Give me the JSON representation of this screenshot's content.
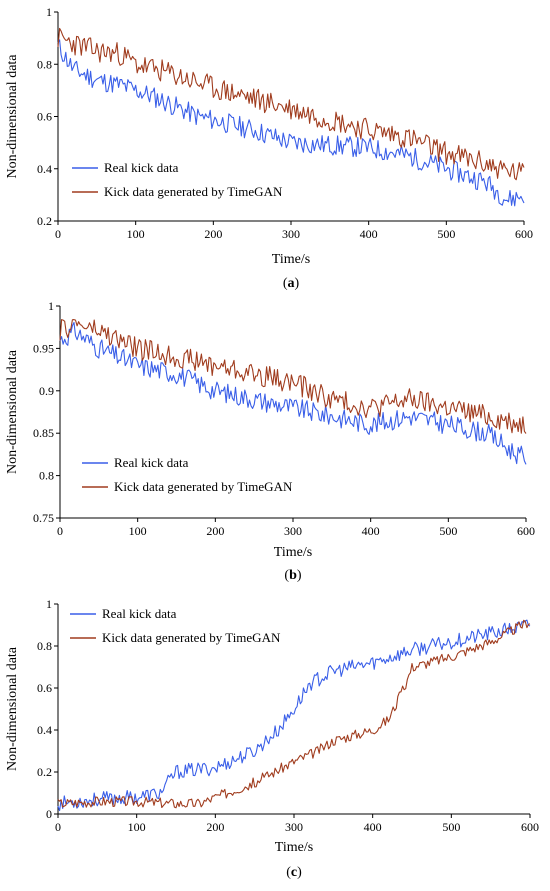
{
  "chart_data": [
    {
      "type": "line",
      "panel_label": "(a)",
      "xlabel": "Time/s",
      "ylabel": "Non-dimensional data",
      "xlim": [
        0,
        600
      ],
      "ylim": [
        0.2,
        1
      ],
      "xticks": [
        0,
        100,
        200,
        300,
        400,
        500,
        600
      ],
      "yticks": [
        0.2,
        0.4,
        0.6,
        0.8,
        1
      ],
      "ytick_labels": [
        "0.2",
        "0.4",
        "0.6",
        "0.8",
        "1"
      ],
      "legend": "left",
      "series": [
        {
          "name": "Real kick data",
          "color": "#3a5fe8",
          "noise": 0.04,
          "seed": 11,
          "x": [
            0,
            20,
            50,
            80,
            100,
            120,
            150,
            180,
            210,
            250,
            280,
            300,
            350,
            400,
            450,
            500,
            550,
            580,
            600
          ],
          "y": [
            0.87,
            0.78,
            0.74,
            0.72,
            0.7,
            0.68,
            0.64,
            0.6,
            0.58,
            0.55,
            0.52,
            0.5,
            0.49,
            0.48,
            0.45,
            0.4,
            0.35,
            0.28,
            0.3
          ]
        },
        {
          "name": "Kick data generated by TimeGAN",
          "color": "#a03c1e",
          "noise": 0.045,
          "seed": 23,
          "x": [
            0,
            20,
            50,
            80,
            100,
            150,
            200,
            250,
            300,
            350,
            400,
            450,
            500,
            550,
            580,
            600
          ],
          "y": [
            0.9,
            0.88,
            0.85,
            0.84,
            0.8,
            0.76,
            0.71,
            0.67,
            0.63,
            0.59,
            0.55,
            0.52,
            0.46,
            0.42,
            0.39,
            0.38
          ]
        }
      ]
    },
    {
      "type": "line",
      "panel_label": "(b)",
      "xlabel": "Time/s",
      "ylabel": "Non-dimensional data",
      "xlim": [
        0,
        600
      ],
      "ylim": [
        0.75,
        1
      ],
      "xticks": [
        0,
        100,
        200,
        300,
        400,
        500,
        600
      ],
      "yticks": [
        0.75,
        0.8,
        0.85,
        0.9,
        0.95,
        1
      ],
      "ytick_labels": [
        "0.75",
        "0.8",
        "0.85",
        "0.9",
        "0.95",
        "1"
      ],
      "legend": "bottom-left",
      "series": [
        {
          "name": "Real kick data",
          "color": "#3a5fe8",
          "noise": 0.012,
          "seed": 31,
          "x": [
            0,
            20,
            50,
            100,
            150,
            200,
            250,
            300,
            350,
            400,
            450,
            500,
            550,
            580,
            600
          ],
          "y": [
            0.96,
            0.97,
            0.95,
            0.93,
            0.92,
            0.9,
            0.89,
            0.88,
            0.87,
            0.86,
            0.87,
            0.86,
            0.85,
            0.83,
            0.82
          ]
        },
        {
          "name": "Kick data generated by TimeGAN",
          "color": "#a03c1e",
          "noise": 0.013,
          "seed": 47,
          "x": [
            0,
            20,
            50,
            100,
            150,
            200,
            250,
            300,
            350,
            400,
            450,
            500,
            550,
            600
          ],
          "y": [
            0.97,
            0.98,
            0.97,
            0.95,
            0.94,
            0.93,
            0.92,
            0.91,
            0.89,
            0.88,
            0.89,
            0.88,
            0.87,
            0.86
          ]
        }
      ]
    },
    {
      "type": "line",
      "panel_label": "(c)",
      "xlabel": "Time/s",
      "ylabel": "Non-dimensional data",
      "xlim": [
        0,
        600
      ],
      "ylim": [
        0,
        1
      ],
      "xticks": [
        0,
        100,
        200,
        300,
        400,
        500,
        600
      ],
      "yticks": [
        0,
        0.2,
        0.4,
        0.6,
        0.8,
        1
      ],
      "ytick_labels": [
        "0",
        "0.2",
        "0.4",
        "0.6",
        "0.8",
        "1"
      ],
      "legend": "top-left",
      "series": [
        {
          "name": "Real kick data",
          "color": "#3a5fe8",
          "noise": 0.035,
          "seed": 53,
          "x": [
            0,
            50,
            100,
            130,
            150,
            200,
            250,
            280,
            300,
            320,
            350,
            400,
            450,
            500,
            550,
            600
          ],
          "y": [
            0.05,
            0.07,
            0.08,
            0.1,
            0.2,
            0.22,
            0.3,
            0.4,
            0.5,
            0.62,
            0.68,
            0.72,
            0.78,
            0.82,
            0.86,
            0.9
          ]
        },
        {
          "name": "Kick data generated by TimeGAN",
          "color": "#a03c1e",
          "noise": 0.025,
          "seed": 67,
          "x": [
            0,
            50,
            100,
            150,
            180,
            200,
            250,
            300,
            330,
            350,
            380,
            400,
            420,
            440,
            450,
            500,
            550,
            600
          ],
          "y": [
            0.05,
            0.06,
            0.06,
            0.05,
            0.05,
            0.08,
            0.15,
            0.25,
            0.3,
            0.35,
            0.38,
            0.4,
            0.45,
            0.6,
            0.7,
            0.75,
            0.82,
            0.92
          ]
        }
      ]
    }
  ]
}
